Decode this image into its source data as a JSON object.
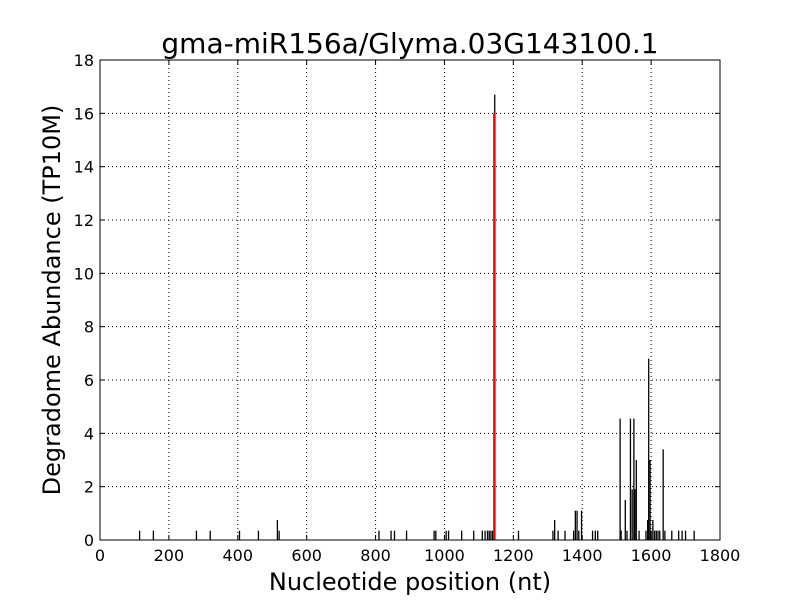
{
  "chart_data": {
    "type": "bar",
    "title": "gma-miR156a/Glyma.03G143100.1",
    "xlabel": "Nucleotide position (nt)",
    "ylabel": "Degradome Abundance (TP10M)",
    "xlim": [
      0,
      1800
    ],
    "ylim": [
      0,
      18
    ],
    "xticks": [
      0,
      200,
      400,
      600,
      800,
      1000,
      1200,
      1400,
      1600,
      1800
    ],
    "yticks": [
      0,
      2,
      4,
      6,
      8,
      10,
      12,
      14,
      16,
      18
    ],
    "grid": true,
    "colors": {
      "background_peaks": "#000000",
      "target_peak": "#ff0000"
    },
    "series": [
      {
        "values": [
          [
            115,
            0.35
          ],
          [
            155,
            0.35
          ],
          [
            280,
            0.35
          ],
          [
            320,
            0.35
          ],
          [
            405,
            0.35
          ],
          [
            460,
            0.35
          ],
          [
            515,
            0.75
          ],
          [
            520,
            0.35
          ],
          [
            810,
            0.35
          ],
          [
            845,
            0.35
          ],
          [
            855,
            0.35
          ],
          [
            890,
            0.35
          ],
          [
            970,
            0.35
          ],
          [
            975,
            0.35
          ],
          [
            1005,
            0.35
          ],
          [
            1012,
            0.35
          ],
          [
            1050,
            0.35
          ],
          [
            1085,
            0.35
          ],
          [
            1110,
            0.35
          ],
          [
            1118,
            0.35
          ],
          [
            1125,
            0.35
          ],
          [
            1130,
            0.35
          ],
          [
            1135,
            0.35
          ],
          [
            1140,
            0.35
          ],
          [
            1146,
            16.7
          ],
          [
            1215,
            0.35
          ],
          [
            1315,
            0.35
          ],
          [
            1320,
            0.75
          ],
          [
            1330,
            0.35
          ],
          [
            1350,
            0.35
          ],
          [
            1375,
            0.35
          ],
          [
            1380,
            1.1
          ],
          [
            1385,
            1.1
          ],
          [
            1390,
            0.35
          ],
          [
            1398,
            1.1
          ],
          [
            1430,
            0.35
          ],
          [
            1438,
            0.35
          ],
          [
            1445,
            0.35
          ],
          [
            1510,
            4.55
          ],
          [
            1513,
            0.35
          ],
          [
            1525,
            1.5
          ],
          [
            1530,
            0.35
          ],
          [
            1540,
            4.55
          ],
          [
            1545,
            1.9
          ],
          [
            1550,
            4.55
          ],
          [
            1553,
            1.9
          ],
          [
            1557,
            3.0
          ],
          [
            1565,
            0.35
          ],
          [
            1585,
            0.35
          ],
          [
            1590,
            0.75
          ],
          [
            1593,
            6.8
          ],
          [
            1597,
            3.0
          ],
          [
            1600,
            0.35
          ],
          [
            1605,
            0.75
          ],
          [
            1610,
            0.35
          ],
          [
            1615,
            0.35
          ],
          [
            1620,
            0.35
          ],
          [
            1625,
            0.35
          ],
          [
            1635,
            3.4
          ],
          [
            1640,
            0.35
          ],
          [
            1660,
            0.35
          ],
          [
            1680,
            0.35
          ],
          [
            1690,
            0.35
          ],
          [
            1700,
            0.35
          ],
          [
            1725,
            0.35
          ]
        ]
      },
      {
        "values": [
          [
            1145,
            16.0
          ]
        ]
      }
    ]
  }
}
